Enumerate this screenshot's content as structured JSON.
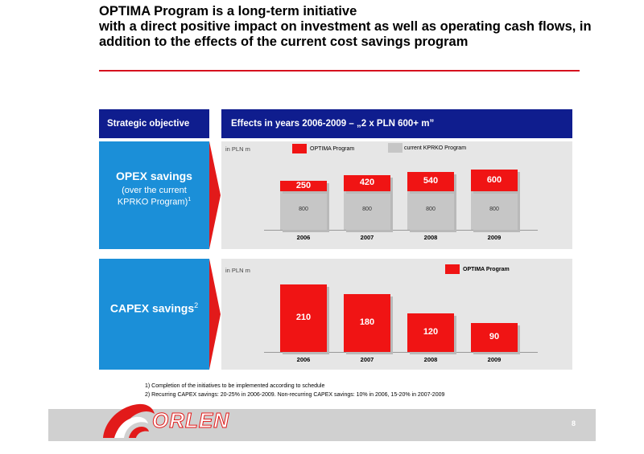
{
  "title": {
    "line1": "OPTIMA Program is a long-term initiative",
    "line2": "with a direct positive impact on investment as well as operating cash flows, in",
    "line3": "addition to the effects of the current cost savings program"
  },
  "headers": {
    "left": "Strategic objective",
    "right": "Effects in years 2006-2009 – „2 x PLN 600+ m”"
  },
  "opex": {
    "title": "OPEX savings",
    "subtitle1": "(over the current",
    "subtitle2": "KPRKO Program)",
    "sup": "1",
    "unit": "in PLN m",
    "legend_optima": "OPTIMA Program",
    "legend_kprko": "current KPRKO Program"
  },
  "capex": {
    "title": "CAPEX savings",
    "sup": "2",
    "unit": "in PLN m",
    "legend_optima": "OPTIMA Program"
  },
  "chart_data": [
    {
      "type": "bar",
      "stacked": true,
      "categories": [
        "2006",
        "2007",
        "2008",
        "2009"
      ],
      "series": [
        {
          "name": "current KPRKO Program",
          "values": [
            800,
            800,
            800,
            800
          ]
        },
        {
          "name": "OPTIMA Program",
          "values": [
            250,
            420,
            540,
            600
          ]
        }
      ],
      "ylabel": "in PLN m",
      "colors": {
        "OPTIMA Program": "#f01414",
        "current KPRKO Program": "#c6c6c6"
      }
    },
    {
      "type": "bar",
      "categories": [
        "2006",
        "2007",
        "2008",
        "2009"
      ],
      "series": [
        {
          "name": "OPTIMA Program",
          "values": [
            210,
            180,
            120,
            90
          ]
        }
      ],
      "ylabel": "in PLN m",
      "colors": {
        "OPTIMA Program": "#f01414"
      }
    }
  ],
  "footnotes": {
    "n1": "1) Completion of the initiatives to be implemented according to schedule",
    "n2": "2) Recurring CAPEX savings: 20-25% in 2006-2009. Non-recurring CAPEX savings: 10% in 2006, 15-20% in 2007-2009"
  },
  "footer": {
    "logo": "ORLEN",
    "page": "8"
  },
  "colors": {
    "accent_red": "#e21a1a",
    "header_navy": "#0f1d8e",
    "box_blue": "#1b8fd8"
  }
}
